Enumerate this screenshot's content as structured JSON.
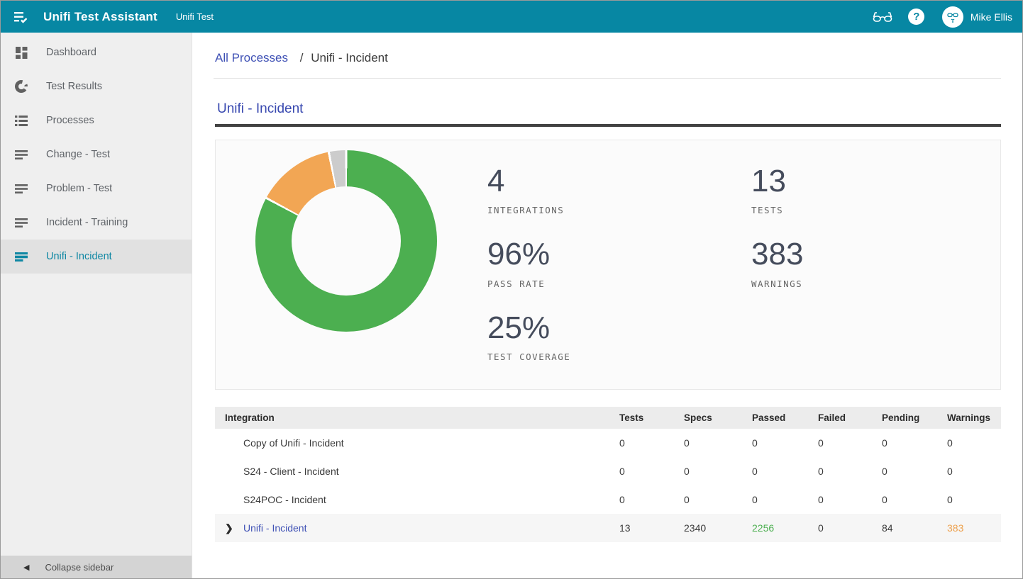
{
  "colors": {
    "accent": "#0787a3",
    "link": "#3f51b5",
    "passed_green": "#4caf50",
    "warning_orange": "#eda04d",
    "pending_gray": "#cccccc"
  },
  "topbar": {
    "title": "Unifi Test Assistant",
    "subtitle": "Unifi Test",
    "user_name": "Mike Ellis",
    "icons": [
      "menu-check-icon",
      "glasses-icon",
      "help-icon",
      "avatar"
    ]
  },
  "sidebar": {
    "items": [
      {
        "label": "Dashboard",
        "icon": "dashboard-icon",
        "active": false
      },
      {
        "label": "Test Results",
        "icon": "pie-icon",
        "active": false
      },
      {
        "label": "Processes",
        "icon": "list-icon",
        "active": false
      },
      {
        "label": "Change - Test",
        "icon": "notes-icon",
        "active": false
      },
      {
        "label": "Problem - Test",
        "icon": "notes-icon",
        "active": false
      },
      {
        "label": "Incident - Training",
        "icon": "notes-icon",
        "active": false
      },
      {
        "label": "Unifi - Incident",
        "icon": "notes-icon",
        "active": true
      }
    ],
    "collapse_label": "Collapse sidebar"
  },
  "breadcrumb": {
    "link": "All Processes",
    "separator": "/",
    "current": "Unifi - Incident"
  },
  "section": {
    "title": "Unifi - Incident"
  },
  "chart_data": {
    "type": "pie",
    "title": "Unifi - Incident test summary donut",
    "donut": true,
    "segments": [
      {
        "name": "Passed",
        "value": 2256,
        "color": "#4caf50"
      },
      {
        "name": "Warnings",
        "value": 383,
        "color": "#f2a654"
      },
      {
        "name": "Pending",
        "value": 84,
        "color": "#cccccc"
      }
    ],
    "legend_position": "none"
  },
  "stats": {
    "column1": [
      {
        "value": "4",
        "label": "INTEGRATIONS"
      },
      {
        "value": "96%",
        "label": "PASS RATE"
      },
      {
        "value": "25%",
        "label": "TEST COVERAGE"
      }
    ],
    "column2": [
      {
        "value": "13",
        "label": "TESTS"
      },
      {
        "value": "383",
        "label": "WARNINGS"
      }
    ]
  },
  "table": {
    "columns": [
      "Integration",
      "Tests",
      "Specs",
      "Passed",
      "Failed",
      "Pending",
      "Warnings"
    ],
    "rows": [
      {
        "name": "Copy of Unifi - Incident",
        "expandable": false,
        "link": false,
        "highlight": false,
        "tests": "0",
        "specs": "0",
        "passed": "0",
        "failed": "0",
        "pending": "0",
        "warnings": "0"
      },
      {
        "name": "S24 - Client - Incident",
        "expandable": false,
        "link": false,
        "highlight": false,
        "tests": "0",
        "specs": "0",
        "passed": "0",
        "failed": "0",
        "pending": "0",
        "warnings": "0"
      },
      {
        "name": "S24POC - Incident",
        "expandable": false,
        "link": false,
        "highlight": false,
        "tests": "0",
        "specs": "0",
        "passed": "0",
        "failed": "0",
        "pending": "0",
        "warnings": "0"
      },
      {
        "name": "Unifi - Incident",
        "expandable": true,
        "link": true,
        "highlight": true,
        "tests": "13",
        "specs": "2340",
        "passed": "2256",
        "failed": "0",
        "pending": "84",
        "warnings": "383"
      }
    ]
  }
}
